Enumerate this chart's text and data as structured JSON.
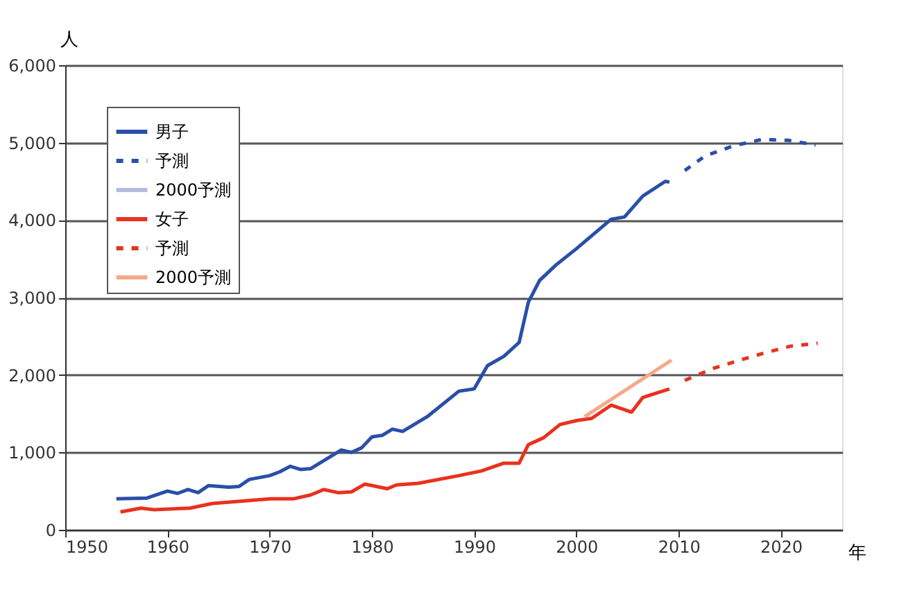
{
  "chart_data": {
    "type": "line",
    "xlabel": "年",
    "ylabel": "人",
    "xlim": [
      1950,
      2026
    ],
    "xticks": [
      1950,
      1960,
      1970,
      1980,
      1990,
      2000,
      2010,
      2020
    ],
    "ylim": [
      0,
      6000
    ],
    "yticks": [
      {
        "value": 0,
        "label": "0"
      },
      {
        "value": 1000,
        "label": "1,000"
      },
      {
        "value": 2000,
        "label": "2,000"
      },
      {
        "value": 3000,
        "label": "3,000"
      },
      {
        "value": 4000,
        "label": "4,000"
      },
      {
        "value": 5000,
        "label": "5,000"
      },
      {
        "value": 6000,
        "label": "6,000"
      }
    ],
    "grid": "y",
    "legend": "top left",
    "marker": "none",
    "series": [
      {
        "name": "男子",
        "color": "#2a4fa8",
        "line_style": "solid",
        "x": [
          1955,
          1958,
          1960,
          1961,
          1962,
          1963,
          1964,
          1966,
          1967,
          1968,
          1970,
          1971,
          1972,
          1973,
          1974,
          1975,
          1976,
          1977,
          1978,
          1979,
          1980,
          1981,
          1982,
          1983,
          1985.4,
          1988.5,
          1990,
          1991.3,
          1992.9,
          1994.4,
          1995.3,
          1996.4,
          1998,
          2000,
          2001.7,
          2003.4,
          2004.7,
          2006.5,
          2008.7,
          2009.1
        ],
        "values": [
          400,
          410,
          500,
          470,
          520,
          480,
          570,
          550,
          560,
          650,
          700,
          750,
          820,
          780,
          790,
          870,
          950,
          1030,
          1000,
          1060,
          1200,
          1220,
          1300,
          1270,
          1460,
          1790,
          1820,
          2120,
          2240,
          2420,
          2940,
          3220,
          3420,
          3630,
          3820,
          4010,
          4040,
          4310,
          4500,
          4490
        ]
      },
      {
        "name": "予測",
        "color": "#2a4fa8",
        "line_style": "dashed",
        "x": [
          2010.6,
          2012.6,
          2015.4,
          2018.1,
          2020.7,
          2023.4
        ],
        "values": [
          4640,
          4830,
          4960,
          5040,
          5030,
          4970
        ]
      },
      {
        "name": "2000予測",
        "color": "#b4bce0",
        "line_style": "solid"
      },
      {
        "name": "女子",
        "color": "#e8321e",
        "line_style": "solid",
        "x": [
          1955.4,
          1957.4,
          1958.7,
          1962.2,
          1964.4,
          1970.1,
          1972.3,
          1974,
          1975.3,
          1976.7,
          1978,
          1979.3,
          1979.7,
          1981.5,
          1982.4,
          1984.5,
          1988.5,
          1990.7,
          1992.9,
          1994.4,
          1995.3,
          1996.8,
          1998.4,
          2000,
          2001.5,
          2003.4,
          2005.4,
          2006.5,
          2009.1
        ],
        "values": [
          230,
          280,
          260,
          280,
          340,
          400,
          400,
          450,
          520,
          480,
          490,
          590,
          580,
          530,
          580,
          600,
          700,
          760,
          860,
          860,
          1100,
          1190,
          1360,
          1410,
          1440,
          1610,
          1520,
          1710,
          1820
        ]
      },
      {
        "name": "予測",
        "color": "#e8321e",
        "line_style": "dashed",
        "x": [
          2010.6,
          2013.3,
          2015.7,
          2018.3,
          2020.9,
          2023.6
        ],
        "values": [
          1930,
          2080,
          2180,
          2280,
          2370,
          2410
        ]
      },
      {
        "name": "2000予測",
        "color": "#f4a98a",
        "line_style": "solid",
        "x": [
          2000.8,
          2009.3
        ],
        "values": [
          1460,
          2190
        ]
      }
    ]
  }
}
